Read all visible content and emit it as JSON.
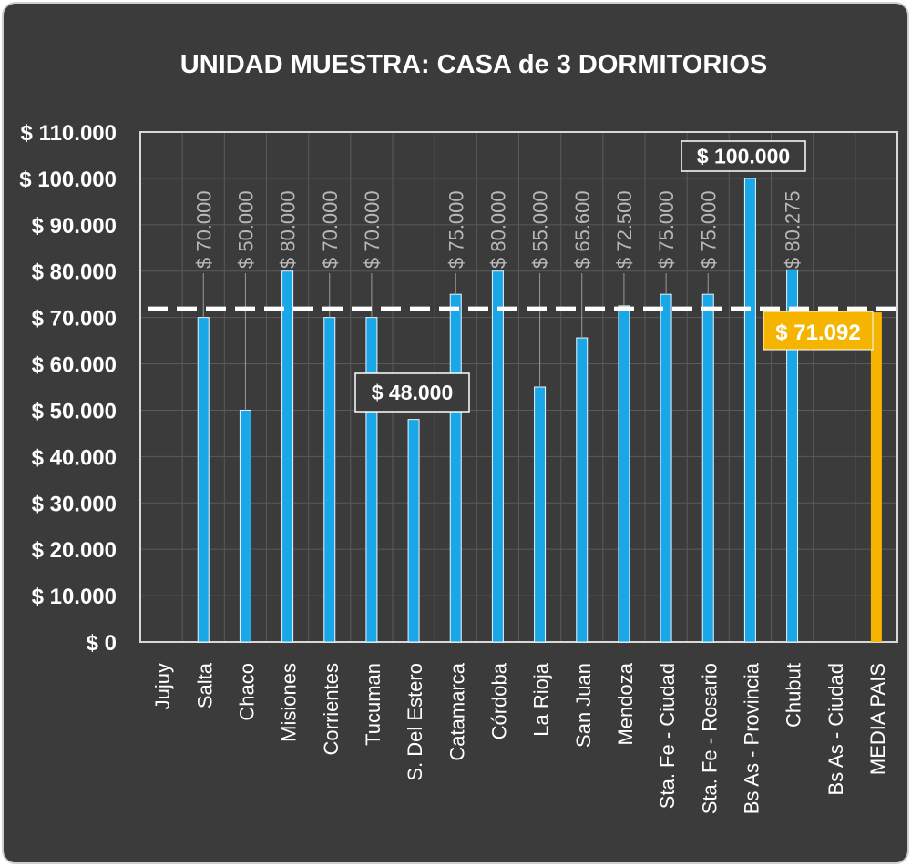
{
  "chart_data": {
    "type": "bar",
    "title": "UNIDAD MUESTRA: CASA de 3 DORMITORIOS",
    "xlabel": "",
    "ylabel": "",
    "ylim": [
      0,
      110000
    ],
    "ytick_values": [
      0,
      10000,
      20000,
      30000,
      40000,
      50000,
      60000,
      70000,
      80000,
      90000,
      100000,
      110000
    ],
    "ytick_labels": [
      "$ 0",
      "$ 10.000",
      "$ 20.000",
      "$ 30.000",
      "$ 40.000",
      "$ 50.000",
      "$ 60.000",
      "$ 70.000",
      "$ 80.000",
      "$ 90.000",
      "$ 100.000",
      "$ 110.000"
    ],
    "grid": true,
    "categories": [
      "Jujuy",
      "Salta",
      "Chaco",
      "Misiones",
      "Corrientes",
      "Tucuman",
      "S. Del Estero",
      "Catamarca",
      "Córdoba",
      "La Rioja",
      "San Juan",
      "Mendoza",
      "Sta. Fe - Ciudad",
      "Sta. Fe - Rosario",
      "Bs As - Provincia",
      "Chubut",
      "Bs As - Ciudad",
      "MEDIA PAIS"
    ],
    "values": [
      null,
      70000,
      50000,
      80000,
      70000,
      70000,
      48000,
      75000,
      80000,
      55000,
      65600,
      72500,
      75000,
      75000,
      100000,
      80275,
      null,
      71092
    ],
    "data_labels": [
      "",
      "$ 70.000",
      "$ 50.000",
      "$ 80.000",
      "$ 70.000",
      "$ 70.000",
      "$ 48.000",
      "$ 75.000",
      "$ 80.000",
      "$ 55.000",
      "$ 65.600",
      "$ 72.500",
      "$ 75.000",
      "$ 75.000",
      "$ 100.000",
      "$ 80.275",
      "",
      "$ 71.092"
    ],
    "highlighted_labels": [
      "$ 48.000",
      "$ 100.000"
    ],
    "average_line": {
      "value": 71092,
      "label": "$ 71.092",
      "style": "dashed"
    },
    "colors": {
      "background": "#3b3b3b",
      "bar": "#1aa7e8",
      "average_bar": "#f5b400",
      "grid": "#5a5a5a",
      "text": "#ffffff",
      "label": "#b8b8b8"
    }
  }
}
